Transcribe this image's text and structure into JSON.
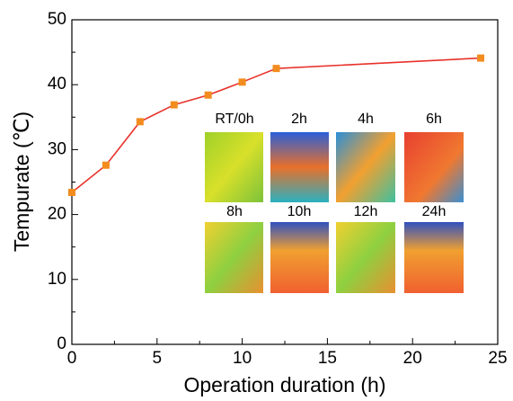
{
  "chart_data": {
    "type": "line",
    "x_label": "Operation duration (h)",
    "y_label": "Tempurate (℃)",
    "x": [
      0,
      2,
      4,
      6,
      8,
      10,
      12,
      24
    ],
    "series": [
      {
        "color": "#e8312a",
        "marker_color": "#f28c1e",
        "values": [
          23.4,
          27.6,
          34.3,
          36.9,
          38.4,
          40.4,
          42.5,
          44.1
        ]
      }
    ],
    "xlim": [
      0,
      25
    ],
    "xticks": [
      0,
      5,
      10,
      15,
      20,
      25
    ],
    "ylim": [
      0,
      50
    ],
    "yticks": [
      0,
      10,
      20,
      30,
      40,
      50
    ],
    "inset_labels": [
      "RT/0h",
      "2h",
      "4h",
      "6h",
      "8h",
      "10h",
      "12h",
      "24h"
    ]
  }
}
